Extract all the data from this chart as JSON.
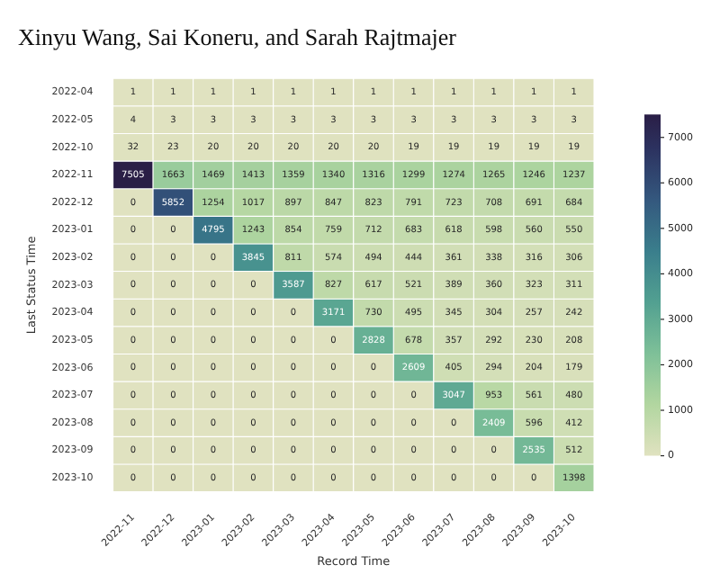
{
  "chart_data": {
    "type": "heatmap",
    "title": "Xinyu Wang, Sai Koneru, and Sarah Rajtmajer",
    "xlabel": "Record Time",
    "ylabel": "Last Status Time",
    "categories": [
      "2022-11",
      "2022-12",
      "2023-01",
      "2023-02",
      "2023-03",
      "2023-04",
      "2023-05",
      "2023-06",
      "2023-07",
      "2023-08",
      "2023-09",
      "2023-10"
    ],
    "y_categories": [
      "2022-04",
      "2022-05",
      "2022-10",
      "2022-11",
      "2022-12",
      "2023-01",
      "2023-02",
      "2023-03",
      "2023-04",
      "2023-05",
      "2023-06",
      "2023-07",
      "2023-08",
      "2023-09",
      "2023-10"
    ],
    "cells": [
      [
        1,
        1,
        1,
        1,
        1,
        1,
        1,
        1,
        1,
        1,
        1,
        1
      ],
      [
        4,
        3,
        3,
        3,
        3,
        3,
        3,
        3,
        3,
        3,
        3,
        3
      ],
      [
        32,
        23,
        20,
        20,
        20,
        20,
        20,
        19,
        19,
        19,
        19,
        19
      ],
      [
        7505,
        1663,
        1469,
        1413,
        1359,
        1340,
        1316,
        1299,
        1274,
        1265,
        1246,
        1237
      ],
      [
        0,
        5852,
        1254,
        1017,
        897,
        847,
        823,
        791,
        723,
        708,
        691,
        684
      ],
      [
        0,
        0,
        4795,
        1243,
        854,
        759,
        712,
        683,
        618,
        598,
        560,
        550
      ],
      [
        0,
        0,
        0,
        3845,
        811,
        574,
        494,
        444,
        361,
        338,
        316,
        306
      ],
      [
        0,
        0,
        0,
        0,
        3587,
        827,
        617,
        521,
        389,
        360,
        323,
        311
      ],
      [
        0,
        0,
        0,
        0,
        0,
        3171,
        730,
        495,
        345,
        304,
        257,
        242
      ],
      [
        0,
        0,
        0,
        0,
        0,
        0,
        2828,
        678,
        357,
        292,
        230,
        208
      ],
      [
        0,
        0,
        0,
        0,
        0,
        0,
        0,
        2609,
        405,
        294,
        204,
        179
      ],
      [
        0,
        0,
        0,
        0,
        0,
        0,
        0,
        0,
        3047,
        953,
        561,
        480
      ],
      [
        0,
        0,
        0,
        0,
        0,
        0,
        0,
        0,
        0,
        2409,
        596,
        412
      ],
      [
        0,
        0,
        0,
        0,
        0,
        0,
        0,
        0,
        0,
        0,
        2535,
        512
      ],
      [
        0,
        0,
        0,
        0,
        0,
        0,
        0,
        0,
        0,
        0,
        0,
        1398
      ]
    ],
    "clim": [
      0,
      7505
    ],
    "cticks": [
      0,
      1000,
      2000,
      3000,
      4000,
      5000,
      6000,
      7000
    ],
    "data_labels": true
  }
}
